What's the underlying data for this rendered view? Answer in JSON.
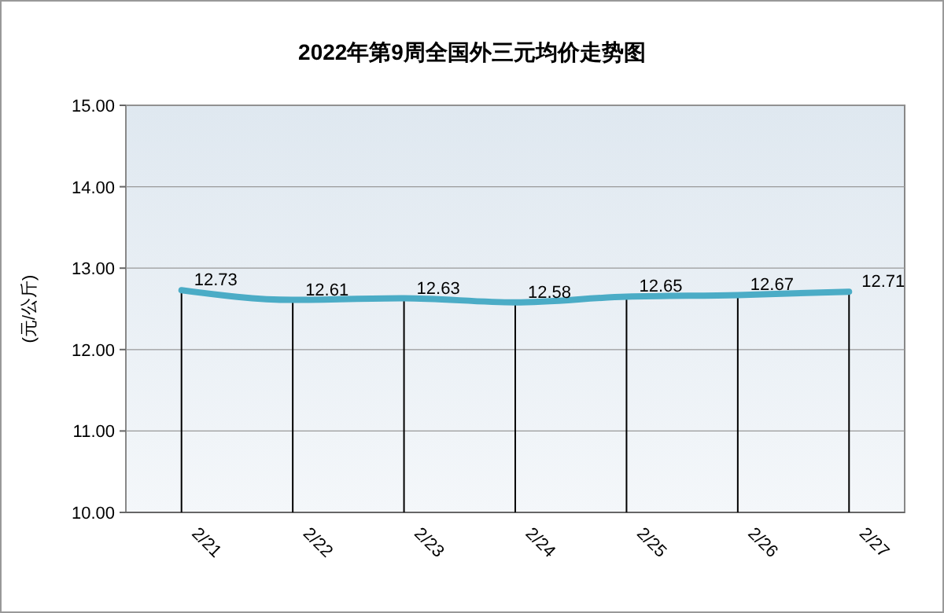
{
  "chart_data": {
    "type": "line",
    "title": "2022年第9周全国外三元均价走势图",
    "ylabel": "(元/公斤)",
    "categories": [
      "2/21",
      "2/22",
      "2/23",
      "2/24",
      "2/25",
      "2/26",
      "2/27"
    ],
    "series": [
      {
        "color": "#4bacc6",
        "values": [
          12.73,
          12.61,
          12.63,
          12.58,
          12.65,
          12.67,
          12.71
        ]
      }
    ],
    "ylim": [
      10,
      15
    ],
    "yticks": [
      {
        "value": 10,
        "label": "10.00"
      },
      {
        "value": 11,
        "label": "11.00"
      },
      {
        "value": 12,
        "label": "12.00"
      },
      {
        "value": 13,
        "label": "13.00"
      },
      {
        "value": 14,
        "label": "14.00"
      },
      {
        "value": 15,
        "label": "15.00"
      }
    ],
    "grid": "y",
    "data_labels": true,
    "marker": "none",
    "line_style": "solid"
  }
}
